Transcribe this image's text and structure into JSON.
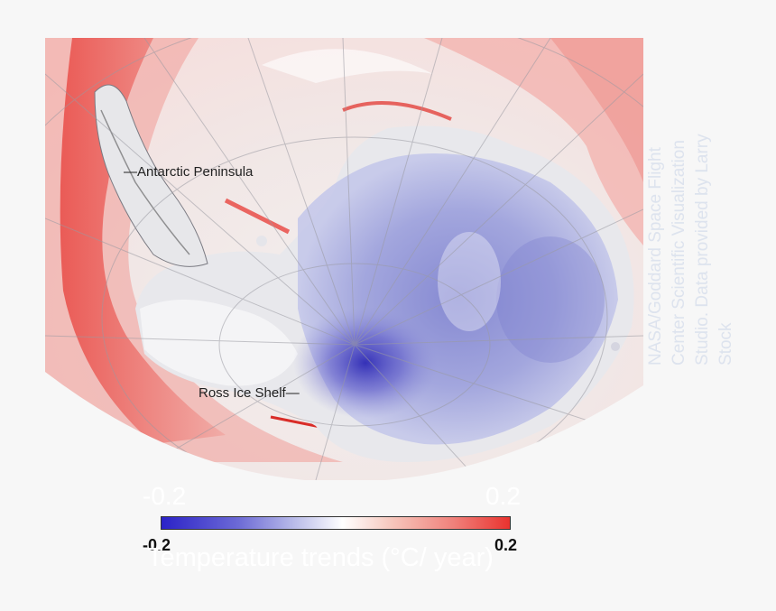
{
  "map": {
    "labels": {
      "peninsula": "—Antarctic Peninsula",
      "ross": "Ross Ice Shelf—"
    },
    "credit": "NASA/Goddard Space Flight Center Scientific Visualization Studio. Data provided by Larry Stock"
  },
  "legend": {
    "min": "-0.2",
    "max": "0.2",
    "title": "Temperature trends (°C/ year)",
    "colors": {
      "cold": "#2b22c8",
      "neutral": "#ffffff",
      "warm": "#e9332f"
    }
  }
}
